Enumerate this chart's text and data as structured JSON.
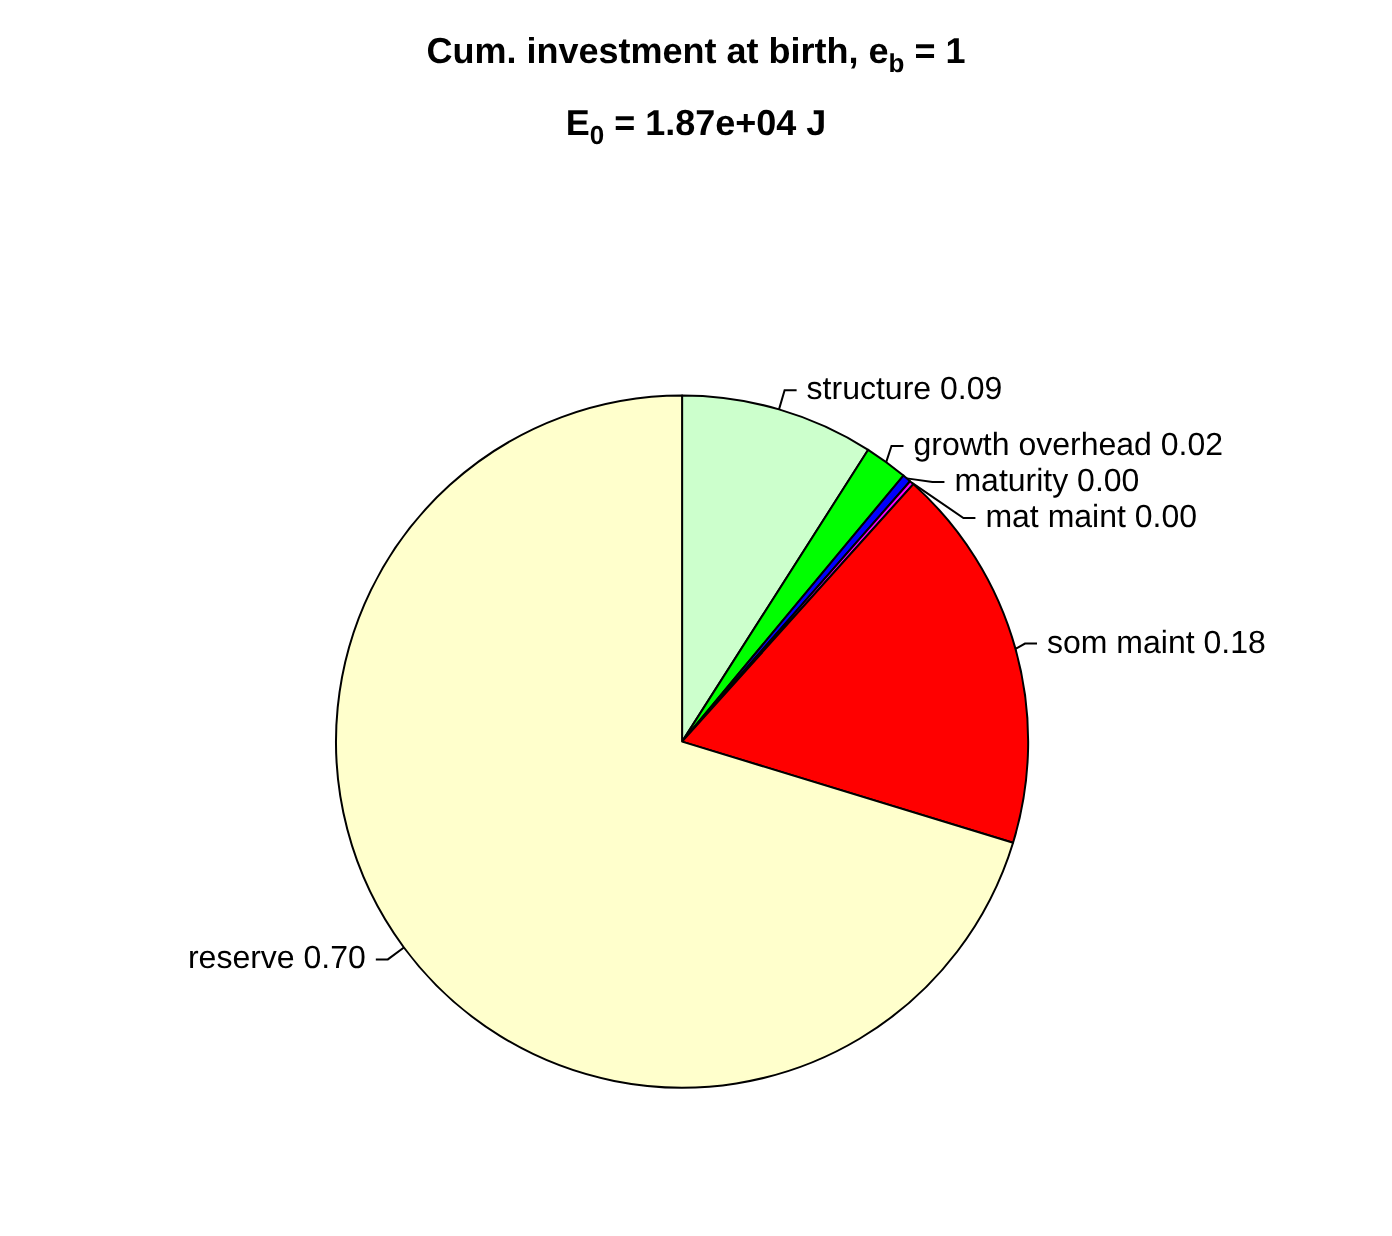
{
  "chart_data": {
    "type": "pie",
    "title": "Cum. investment at birth, e$_{b}$ = 1",
    "subtitle": "E$_{0}$ = 1.87e+04 J",
    "categories": [
      "structure",
      "growth overhead",
      "maturity",
      "mat maint",
      "som maint",
      "reserve"
    ],
    "values": [
      0.09,
      0.02,
      0.004,
      0.002,
      0.18,
      0.7
    ],
    "value_labels": [
      "0.09",
      "0.02",
      "0.00",
      "0.00",
      "0.18",
      "0.70"
    ],
    "colors": [
      "#ccffcc",
      "#00ff00",
      "#0000ff",
      "#ff00ff",
      "#ff0000",
      "#ffffcc"
    ],
    "legend": false
  }
}
